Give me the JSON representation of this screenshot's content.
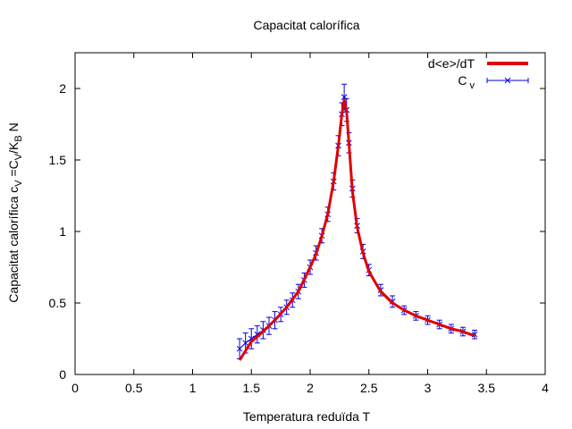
{
  "chart_data": {
    "type": "line",
    "title": "Capacitat calorífica",
    "xlabel": "Temperatura reduïda T",
    "ylabel": {
      "main": "Capacitat calorífica c",
      "sub1": "V",
      "mid": " =C",
      "sub2": "V",
      "mid2": "/K",
      "sub3": "B",
      "end": " N"
    },
    "xlim": [
      0,
      4
    ],
    "ylim": [
      0,
      2.25
    ],
    "xticks": [
      0,
      0.5,
      1,
      1.5,
      2,
      2.5,
      3,
      3.5,
      4
    ],
    "xtick_labels": [
      "0",
      "0.5",
      "1",
      "1.5",
      "2",
      "2.5",
      "3",
      "3.5",
      "4"
    ],
    "yticks": [
      0,
      0.5,
      1,
      1.5,
      2
    ],
    "ytick_labels": [
      "0",
      "0.5",
      "1",
      "1.5",
      "2"
    ],
    "grid": false,
    "legend_position": "top-right",
    "series": [
      {
        "name": "d<e>/dT",
        "style": "line",
        "color": "#e00000",
        "x": [
          1.4,
          1.5,
          1.6,
          1.7,
          1.8,
          1.9,
          2.0,
          2.05,
          2.1,
          2.15,
          2.2,
          2.24,
          2.27,
          2.29,
          2.31,
          2.33,
          2.36,
          2.4,
          2.45,
          2.5,
          2.6,
          2.7,
          2.8,
          2.9,
          3.0,
          3.1,
          3.2,
          3.3,
          3.4
        ],
        "y": [
          0.1,
          0.23,
          0.3,
          0.38,
          0.47,
          0.58,
          0.75,
          0.84,
          0.97,
          1.12,
          1.35,
          1.6,
          1.82,
          1.92,
          1.84,
          1.62,
          1.28,
          1.03,
          0.85,
          0.72,
          0.58,
          0.5,
          0.45,
          0.41,
          0.38,
          0.35,
          0.32,
          0.3,
          0.27
        ]
      },
      {
        "name": "C",
        "name_sub": "v",
        "style": "errorbars",
        "color": "#0000e0",
        "x": [
          1.4,
          1.45,
          1.5,
          1.55,
          1.6,
          1.65,
          1.7,
          1.75,
          1.8,
          1.85,
          1.9,
          1.95,
          2.0,
          2.05,
          2.1,
          2.15,
          2.2,
          2.24,
          2.27,
          2.29,
          2.31,
          2.33,
          2.36,
          2.4,
          2.45,
          2.5,
          2.6,
          2.7,
          2.8,
          2.9,
          3.0,
          3.1,
          3.2,
          3.3,
          3.4
        ],
        "y": [
          0.18,
          0.22,
          0.25,
          0.28,
          0.31,
          0.34,
          0.38,
          0.42,
          0.47,
          0.52,
          0.58,
          0.66,
          0.75,
          0.85,
          0.97,
          1.12,
          1.35,
          1.6,
          1.82,
          1.94,
          1.85,
          1.62,
          1.3,
          1.04,
          0.86,
          0.73,
          0.59,
          0.51,
          0.45,
          0.41,
          0.38,
          0.35,
          0.32,
          0.3,
          0.28
        ],
        "err": [
          0.07,
          0.07,
          0.07,
          0.06,
          0.06,
          0.06,
          0.06,
          0.05,
          0.05,
          0.05,
          0.05,
          0.05,
          0.05,
          0.05,
          0.05,
          0.05,
          0.06,
          0.07,
          0.08,
          0.09,
          0.08,
          0.07,
          0.06,
          0.05,
          0.05,
          0.04,
          0.04,
          0.04,
          0.03,
          0.03,
          0.03,
          0.03,
          0.03,
          0.03,
          0.03
        ]
      }
    ]
  }
}
